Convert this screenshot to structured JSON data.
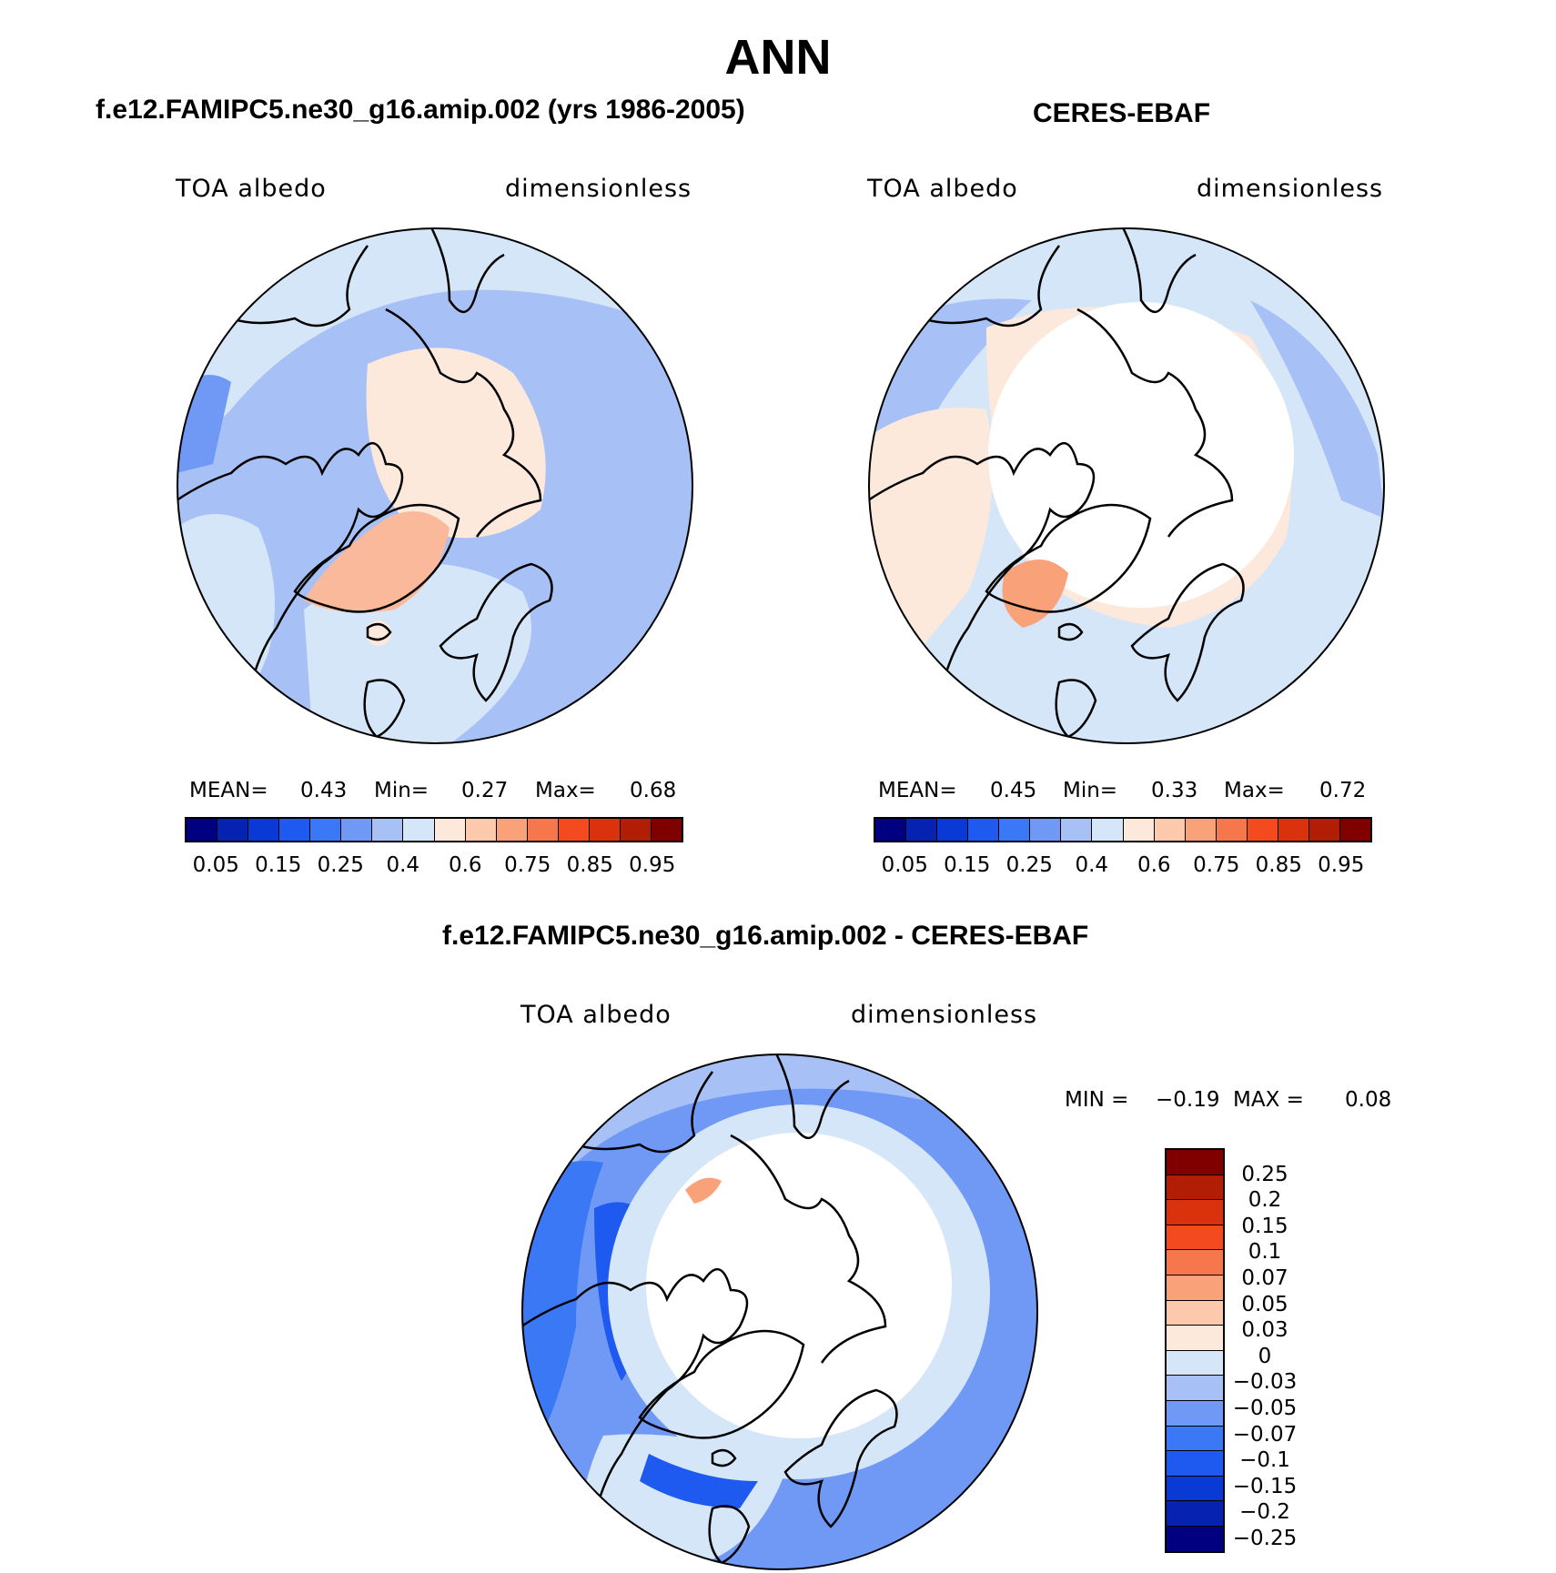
{
  "title": "ANN",
  "panels": [
    {
      "title": "f.e12.FAMIPC5.ne30_g16.amip.002 (yrs 1986-2005)",
      "left_label": "TOA albedo",
      "right_label": "dimensionless",
      "stats": {
        "mean_label": "MEAN=",
        "mean": "0.43",
        "min_label": "Min=",
        "min": "0.27",
        "max_label": "Max=",
        "max": "0.68"
      }
    },
    {
      "title": "CERES-EBAF",
      "left_label": "TOA albedo",
      "right_label": "dimensionless",
      "stats": {
        "mean_label": "MEAN=",
        "mean": "0.45",
        "min_label": "Min=",
        "min": "0.33",
        "max_label": "Max=",
        "max": "0.72"
      }
    }
  ],
  "colorbar_top": {
    "colors": [
      "#000080",
      "#0522b0",
      "#0a3ad6",
      "#1f5af0",
      "#3b78f5",
      "#6f99f5",
      "#a7c0f5",
      "#d5e6f9",
      "#fde8dc",
      "#fcc9ad",
      "#f9a27a",
      "#f7774d",
      "#f44a1f",
      "#d9320c",
      "#b21e05",
      "#800000"
    ],
    "ticks": [
      "0.05",
      "0.15",
      "0.25",
      "0.4",
      "0.6",
      "0.75",
      "0.85",
      "0.95"
    ]
  },
  "diff_panel": {
    "title": "f.e12.FAMIPC5.ne30_g16.amip.002 - CERES-EBAF",
    "left_label": "TOA albedo",
    "right_label": "dimensionless",
    "stats": {
      "min_label": "MIN =",
      "min": "−0.19",
      "max_label": "MAX =",
      "max": "0.08"
    }
  },
  "colorbar_diff": {
    "colors": [
      "#800000",
      "#b21e05",
      "#d9320c",
      "#f44a1f",
      "#f7774d",
      "#f9a27a",
      "#fcc9ad",
      "#fde8dc",
      "#d5e6f9",
      "#a7c0f5",
      "#6f99f5",
      "#3b78f5",
      "#1f5af0",
      "#0a3ad6",
      "#0522b0",
      "#000080"
    ],
    "ticks": [
      "0.25",
      "0.2",
      "0.15",
      "0.1",
      "0.07",
      "0.05",
      "0.03",
      "0",
      "−0.03",
      "−0.05",
      "−0.07",
      "−0.1",
      "−0.15",
      "−0.2",
      "−0.25"
    ]
  },
  "map_colors": {
    "ocean_light": "#d5e6f9",
    "ocean_mid": "#a7c0f5",
    "ocean_deep": "#6f99f5",
    "ice_warm": "#fde8dc",
    "greenland": "#f9b99a",
    "no_data": "#ffffff",
    "diff_strong": "#3b78f5",
    "diff_deep": "#1f5af0"
  }
}
